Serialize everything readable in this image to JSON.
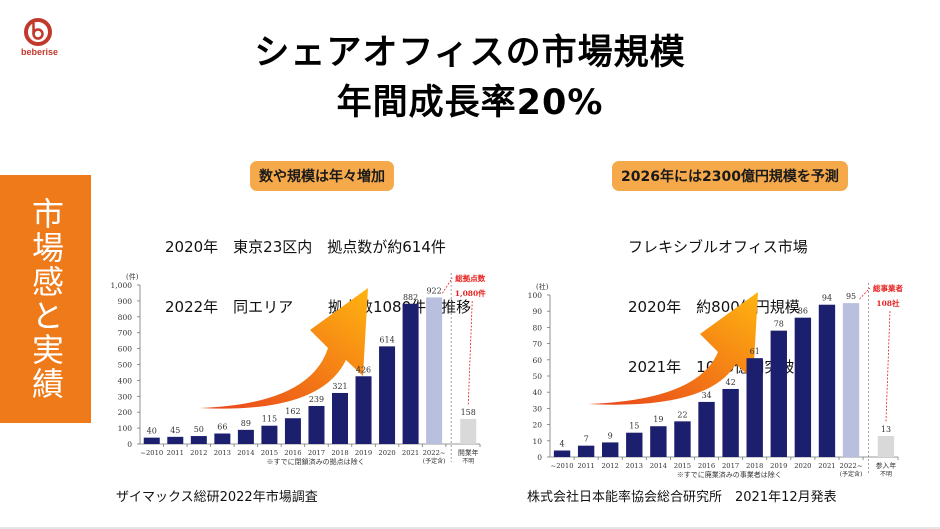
{
  "logo": {
    "text": "beberise",
    "icon": "beberise-b-logo-icon",
    "color": "#c0392b"
  },
  "title": {
    "line1": "シェアオフィスの市場規模",
    "line2": "年間成長率20%"
  },
  "side_tab": {
    "label": "市場感と実績",
    "color": "#ee7a1a"
  },
  "left_panel": {
    "pill": "数や規模は年々増加",
    "lines": [
      "2020年　東京23区内　拠点数が約614件",
      "2022年　同エリア　　 拠点数1080件で推移"
    ],
    "source": "ザイマックス総研2022年市場調査"
  },
  "right_panel": {
    "pill": "2026年には2300億円規模を予測",
    "lines": [
      "フレキシブルオフィス市場",
      "2020年　約800億円規模",
      "2021年　1000億円突破"
    ],
    "source": "株式会社日本能率協会総合研究所　2021年12月発表"
  },
  "chart_data": [
    {
      "type": "bar",
      "title": "",
      "ylabel": "(件)",
      "xlabel": "",
      "ylim": [
        0,
        1000
      ],
      "yticks": [
        "0",
        "100",
        "200",
        "300",
        "400",
        "500",
        "600",
        "700",
        "800",
        "900",
        "1,000"
      ],
      "ytick_values": [
        0,
        100,
        200,
        300,
        400,
        500,
        600,
        700,
        800,
        900,
        1000
      ],
      "categories": [
        "~2010",
        "2011",
        "2012",
        "2013",
        "2014",
        "2015",
        "2016",
        "2017",
        "2018",
        "2019",
        "2020",
        "2021",
        "2022~",
        "開業年"
      ],
      "category_sub": [
        "",
        "",
        "",
        "",
        "",
        "",
        "",
        "",
        "",
        "",
        "",
        "",
        "(予定含)",
        "不明"
      ],
      "values": [
        40,
        45,
        50,
        66,
        89,
        115,
        162,
        239,
        321,
        426,
        614,
        882,
        922,
        158
      ],
      "bar_kinds": [
        "actual",
        "actual",
        "actual",
        "actual",
        "actual",
        "actual",
        "actual",
        "actual",
        "actual",
        "actual",
        "actual",
        "actual",
        "planned",
        "unknown"
      ],
      "colors": {
        "actual": "#1c1f6e",
        "planned": "#b8bfdf",
        "unknown": "#d9d9d9"
      },
      "footnote": "※すでに閉鎖済みの拠点は除く",
      "annotation": {
        "line1": "総拠点数",
        "line2": "1,080件",
        "color": "#e8231f"
      }
    },
    {
      "type": "bar",
      "title": "",
      "ylabel": "(社)",
      "xlabel": "",
      "ylim": [
        0,
        100
      ],
      "yticks": [
        "0",
        "10",
        "20",
        "30",
        "40",
        "50",
        "60",
        "70",
        "80",
        "90",
        "100"
      ],
      "ytick_values": [
        0,
        10,
        20,
        30,
        40,
        50,
        60,
        70,
        80,
        90,
        100
      ],
      "categories": [
        "~2010",
        "2011",
        "2012",
        "2013",
        "2014",
        "2015",
        "2016",
        "2017",
        "2018",
        "2019",
        "2020",
        "2021",
        "2022~",
        "参入年"
      ],
      "category_sub": [
        "",
        "",
        "",
        "",
        "",
        "",
        "",
        "",
        "",
        "",
        "",
        "",
        "(予定含)",
        "不明"
      ],
      "values": [
        4,
        7,
        9,
        15,
        19,
        22,
        34,
        42,
        61,
        78,
        86,
        94,
        95,
        13
      ],
      "bar_kinds": [
        "actual",
        "actual",
        "actual",
        "actual",
        "actual",
        "actual",
        "actual",
        "actual",
        "actual",
        "actual",
        "actual",
        "actual",
        "planned",
        "unknown"
      ],
      "colors": {
        "actual": "#1c1f6e",
        "planned": "#b8bfdf",
        "unknown": "#d9d9d9"
      },
      "footnote": "※すでに廃業済みの事業者は除く",
      "annotation": {
        "line1": "総事業者",
        "line2": "108社",
        "color": "#e8231f"
      }
    }
  ]
}
